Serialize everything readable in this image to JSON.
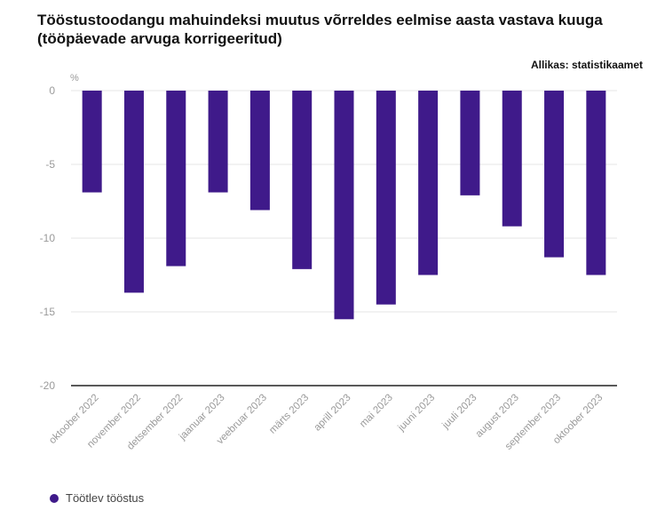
{
  "title": "Tööstustoodangu mahuindeksi muutus võrreldes eelmise aasta vastava kuuga (tööpäevade arvuga korrigeeritud)",
  "source": "Allikas: statistikaamet",
  "unit_label": "%",
  "colors": {
    "bar": "#3f1a8a",
    "grid": "#e4e4e4",
    "baseline": "#222222"
  },
  "chart_data": {
    "type": "bar",
    "categories": [
      "oktoober 2022",
      "november 2022",
      "detsember 2022",
      "jaanuar 2023",
      "veebruar 2023",
      "märts 2023",
      "aprill 2023",
      "mai 2023",
      "juuni 2023",
      "juuli 2023",
      "august 2023",
      "september 2023",
      "oktoober 2023"
    ],
    "series": [
      {
        "name": "Töötlev tööstus",
        "values": [
          -6.9,
          -13.7,
          -11.9,
          -6.9,
          -8.1,
          -12.1,
          -15.5,
          -14.5,
          -12.5,
          -7.1,
          -9.2,
          -11.3,
          -12.5
        ]
      }
    ],
    "yticks": [
      0,
      -5,
      -10,
      -15,
      -20
    ],
    "ylim": [
      -20,
      0
    ],
    "grid": true,
    "legend_position": "bottom-left"
  }
}
